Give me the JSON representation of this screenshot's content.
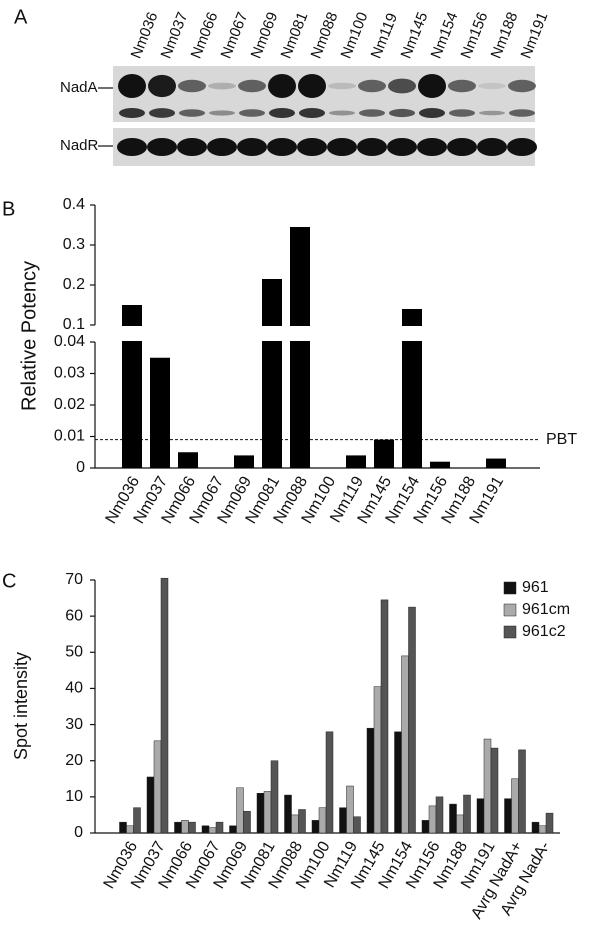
{
  "blot": {
    "label": "A",
    "rows": [
      "NadA",
      "NadR"
    ],
    "lanes": [
      "Nm036",
      "Nm037",
      "Nm066",
      "Nm067",
      "Nm069",
      "Nm081",
      "Nm088",
      "Nm100",
      "Nm119",
      "Nm145",
      "Nm154",
      "Nm156",
      "Nm188",
      "Nm191"
    ]
  },
  "chart_data": [
    {
      "type": "bar",
      "panel_label": "B",
      "y_label": "Relative Potency",
      "categories": [
        "Nm036",
        "Nm037",
        "Nm066",
        "Nm067",
        "Nm069",
        "Nm081",
        "Nm088",
        "Nm100",
        "Nm119",
        "Nm145",
        "Nm154",
        "Nm156",
        "Nm188",
        "Nm191"
      ],
      "values": [
        0.15,
        0.035,
        0.005,
        0,
        0.004,
        0.215,
        0.345,
        0,
        0.004,
        0.009,
        0.14,
        0.002,
        0,
        0.003
      ],
      "color": "#000000",
      "ylim": [
        0,
        0.4
      ],
      "axis_break": [
        0.04,
        0.1
      ],
      "yticks": [
        0,
        0.01,
        0.02,
        0.03,
        0.04,
        0.1,
        0.2,
        0.3,
        0.4
      ],
      "ref_line": {
        "value": 0.009,
        "label": "PBT"
      }
    },
    {
      "type": "grouped_bar",
      "panel_label": "C",
      "y_label": "Spot intensity",
      "categories": [
        "Nm036",
        "Nm037",
        "Nm066",
        "Nm067",
        "Nm069",
        "Nm081",
        "Nm088",
        "Nm100",
        "Nm119",
        "Nm145",
        "Nm154",
        "Nm156",
        "Nm188",
        "Nm191",
        "Avrg NadA+",
        "Avrg NadA-"
      ],
      "series": [
        {
          "name": "961",
          "color": "#111111",
          "values": [
            3,
            15.5,
            3,
            2,
            2,
            11,
            10.5,
            3.5,
            7,
            29,
            28,
            3.5,
            8,
            9.5,
            9.5,
            3
          ]
        },
        {
          "name": "961cm",
          "color": "#aaaaaa",
          "values": [
            2,
            25.5,
            3.5,
            1.5,
            12.5,
            11.5,
            5,
            7,
            13,
            40.5,
            49,
            7.5,
            5,
            26,
            15,
            2
          ]
        },
        {
          "name": "961c2",
          "color": "#555555",
          "values": [
            7,
            70.5,
            3,
            3,
            6,
            20,
            6.5,
            28,
            4.5,
            64.5,
            62.5,
            10,
            10.5,
            23.5,
            23,
            5.5
          ]
        }
      ],
      "ylim": [
        0,
        70
      ],
      "yticks": [
        0,
        10,
        20,
        30,
        40,
        50,
        60,
        70
      ],
      "legend": "top-right"
    }
  ]
}
